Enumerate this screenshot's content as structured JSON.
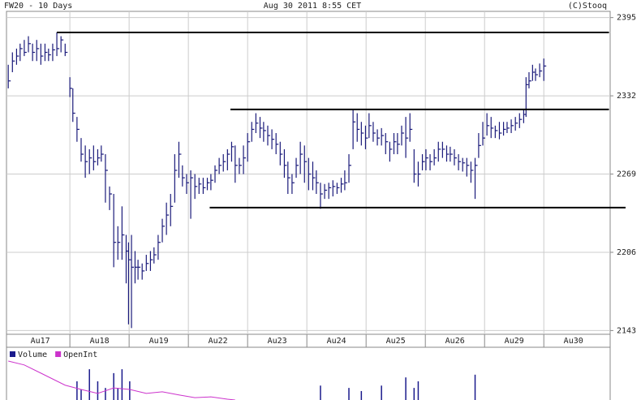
{
  "chart_data": [
    {
      "type": "ohlc",
      "title": "FW20 - 10 Days",
      "subtitle": "Aug 30 2011 8:55 CET",
      "source": "(C)Stooq",
      "color": "#1a1a7a",
      "grid": true,
      "categories": [
        "Au17",
        "Au18",
        "Au19",
        "Au22",
        "Au23",
        "Au24",
        "Au25",
        "Au26",
        "Au29",
        "Au30"
      ],
      "xlim": [
        -0.07,
        10.12
      ],
      "ylim": [
        2140,
        2400
      ],
      "yticks": [
        2143,
        2206,
        2269,
        2332,
        2395
      ],
      "x": [
        -0.04,
        0.03,
        0.1,
        0.16,
        0.23,
        0.3,
        0.37,
        0.44,
        0.51,
        0.58,
        0.64,
        0.71,
        0.78,
        0.85,
        0.92,
        1.0,
        1.05,
        1.12,
        1.19,
        1.26,
        1.33,
        1.4,
        1.47,
        1.53,
        1.6,
        1.67,
        1.74,
        1.81,
        1.88,
        1.95,
        1.99,
        2.04,
        2.1,
        2.15,
        2.22,
        2.29,
        2.36,
        2.42,
        2.49,
        2.56,
        2.63,
        2.7,
        2.77,
        2.84,
        2.9,
        2.97,
        3.04,
        3.11,
        3.18,
        3.25,
        3.32,
        3.38,
        3.45,
        3.52,
        3.59,
        3.66,
        3.73,
        3.79,
        3.86,
        3.93,
        4.0,
        4.07,
        4.14,
        4.21,
        4.27,
        4.34,
        4.41,
        4.48,
        4.55,
        4.62,
        4.68,
        4.75,
        4.82,
        4.89,
        4.96,
        5.03,
        5.1,
        5.16,
        5.23,
        5.3,
        5.37,
        5.44,
        5.51,
        5.58,
        5.64,
        5.71,
        5.78,
        5.85,
        5.92,
        5.99,
        6.05,
        6.12,
        6.19,
        6.26,
        6.33,
        6.4,
        6.47,
        6.53,
        6.6,
        6.67,
        6.74,
        6.81,
        6.88,
        6.95,
        7.01,
        7.08,
        7.15,
        7.22,
        7.29,
        7.36,
        7.42,
        7.49,
        7.56,
        7.63,
        7.7,
        7.77,
        7.84,
        7.9,
        7.97,
        8.04,
        8.11,
        8.18,
        8.25,
        8.32,
        8.38,
        8.45,
        8.52,
        8.59,
        8.66,
        8.7,
        8.75,
        8.81,
        8.86,
        8.93,
        9.0
      ],
      "high": [
        2357,
        2367,
        2370,
        2374,
        2377,
        2380,
        2374,
        2377,
        2374,
        2374,
        2370,
        2374,
        2383,
        2380,
        2374,
        2347,
        2338,
        2315,
        2298,
        2292,
        2289,
        2292,
        2289,
        2292,
        2285,
        2259,
        2253,
        2227,
        2243,
        2220,
        2214,
        2220,
        2207,
        2200,
        2197,
        2204,
        2207,
        2210,
        2220,
        2233,
        2246,
        2253,
        2285,
        2295,
        2276,
        2269,
        2272,
        2269,
        2266,
        2266,
        2266,
        2269,
        2276,
        2282,
        2285,
        2289,
        2295,
        2292,
        2282,
        2292,
        2302,
        2311,
        2318,
        2315,
        2311,
        2308,
        2305,
        2302,
        2295,
        2289,
        2279,
        2269,
        2282,
        2295,
        2292,
        2282,
        2279,
        2272,
        2262,
        2261,
        2262,
        2264,
        2262,
        2266,
        2272,
        2285,
        2321,
        2318,
        2311,
        2308,
        2318,
        2311,
        2305,
        2306,
        2302,
        2295,
        2302,
        2302,
        2308,
        2315,
        2318,
        2289,
        2279,
        2285,
        2289,
        2285,
        2289,
        2295,
        2295,
        2292,
        2291,
        2289,
        2285,
        2282,
        2282,
        2279,
        2282,
        2302,
        2311,
        2318,
        2315,
        2308,
        2311,
        2311,
        2311,
        2313,
        2315,
        2318,
        2321,
        2347,
        2351,
        2357,
        2354,
        2358,
        2362
      ],
      "low": [
        2338,
        2351,
        2357,
        2360,
        2364,
        2367,
        2360,
        2360,
        2357,
        2360,
        2360,
        2360,
        2364,
        2367,
        2364,
        2331,
        2311,
        2295,
        2279,
        2266,
        2269,
        2272,
        2276,
        2279,
        2246,
        2240,
        2194,
        2200,
        2200,
        2181,
        2148,
        2145,
        2181,
        2184,
        2184,
        2191,
        2191,
        2197,
        2200,
        2214,
        2220,
        2227,
        2246,
        2266,
        2259,
        2253,
        2233,
        2249,
        2253,
        2253,
        2256,
        2256,
        2262,
        2269,
        2271,
        2272,
        2279,
        2262,
        2269,
        2269,
        2279,
        2295,
        2302,
        2298,
        2295,
        2292,
        2289,
        2285,
        2276,
        2266,
        2253,
        2253,
        2266,
        2269,
        2262,
        2256,
        2256,
        2253,
        2241,
        2249,
        2249,
        2251,
        2253,
        2254,
        2256,
        2262,
        2289,
        2295,
        2292,
        2289,
        2298,
        2295,
        2292,
        2292,
        2285,
        2279,
        2285,
        2285,
        2292,
        2282,
        2295,
        2262,
        2259,
        2272,
        2272,
        2272,
        2276,
        2279,
        2282,
        2279,
        2279,
        2276,
        2272,
        2271,
        2267,
        2262,
        2249,
        2282,
        2292,
        2300,
        2298,
        2298,
        2297,
        2300,
        2302,
        2302,
        2304,
        2306,
        2310,
        2315,
        2338,
        2344,
        2344,
        2347,
        2344
      ],
      "close": [
        2344,
        2360,
        2364,
        2370,
        2367,
        2374,
        2367,
        2370,
        2364,
        2367,
        2365,
        2369,
        2370,
        2377,
        2367,
        2338,
        2318,
        2305,
        2285,
        2279,
        2282,
        2279,
        2282,
        2285,
        2272,
        2253,
        2214,
        2214,
        2220,
        2207,
        2200,
        2194,
        2194,
        2194,
        2191,
        2197,
        2200,
        2204,
        2214,
        2227,
        2236,
        2243,
        2272,
        2285,
        2266,
        2262,
        2266,
        2259,
        2261,
        2258,
        2262,
        2264,
        2272,
        2276,
        2279,
        2285,
        2291,
        2276,
        2276,
        2282,
        2295,
        2305,
        2310,
        2306,
        2304,
        2300,
        2297,
        2293,
        2285,
        2276,
        2266,
        2262,
        2276,
        2285,
        2279,
        2269,
        2266,
        2262,
        2253,
        2256,
        2258,
        2259,
        2258,
        2261,
        2262,
        2276,
        2311,
        2305,
        2302,
        2298,
        2308,
        2302,
        2298,
        2300,
        2295,
        2289,
        2295,
        2293,
        2302,
        2298,
        2305,
        2269,
        2269,
        2279,
        2282,
        2279,
        2282,
        2289,
        2289,
        2285,
        2285,
        2282,
        2279,
        2278,
        2276,
        2272,
        2276,
        2292,
        2298,
        2308,
        2306,
        2304,
        2302,
        2305,
        2306,
        2308,
        2310,
        2313,
        2317,
        2341,
        2344,
        2351,
        2349,
        2352,
        2356
      ],
      "lines": [
        {
          "value": 2383,
          "x": [
            0.78,
            10.1
          ]
        },
        {
          "value": 2321,
          "x": [
            3.71,
            10.1
          ]
        },
        {
          "value": 2242,
          "x": [
            3.36,
            10.38
          ]
        }
      ]
    },
    {
      "type": "volume",
      "xlim": [
        -0.07,
        10.12
      ],
      "ylim": [
        0,
        100
      ],
      "series": [
        {
          "name": "Volume",
          "color": "#1a1a8c",
          "type": "bar",
          "x": [
            1.12,
            1.19,
            1.33,
            1.47,
            1.6,
            1.74,
            1.81,
            1.88,
            2.01,
            5.23,
            5.71,
            5.92,
            6.26,
            6.67,
            6.81,
            6.88,
            7.84
          ],
          "values": [
            48,
            27,
            79,
            48,
            31,
            69,
            31,
            79,
            48,
            37,
            31,
            23,
            37,
            58,
            31,
            48,
            65
          ]
        },
        {
          "name": "OpenInt",
          "color": "#cc33cc",
          "type": "line",
          "x": [
            -0.04,
            0.23,
            0.51,
            0.92,
            1.19,
            1.47,
            1.74,
            2.01,
            2.29,
            2.56,
            2.84,
            3.11,
            3.38,
            3.66,
            3.79
          ],
          "values": [
            100,
            90,
            69,
            38,
            27,
            17,
            31,
            27,
            17,
            21,
            13,
            6,
            8,
            2,
            0
          ]
        }
      ]
    }
  ]
}
